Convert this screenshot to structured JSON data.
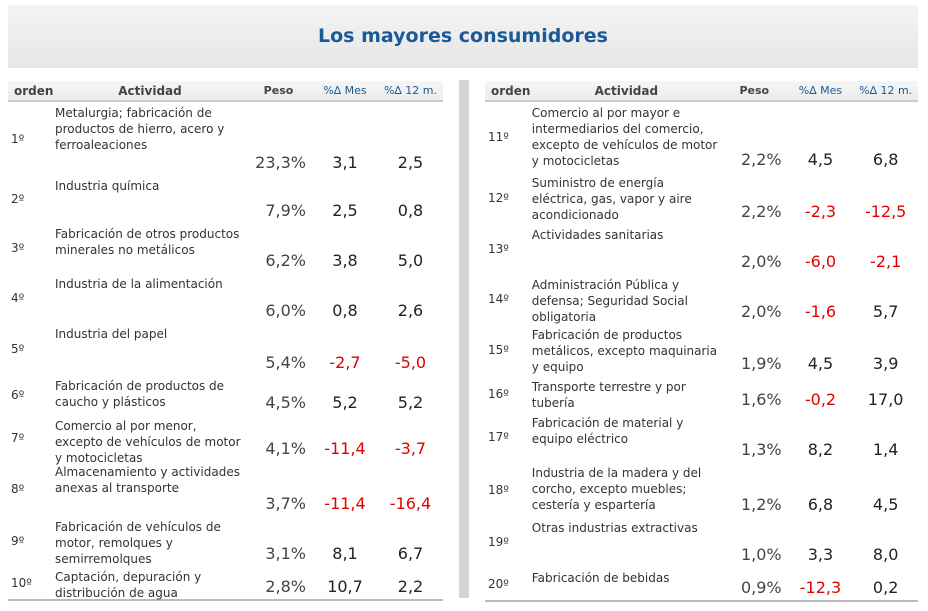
{
  "title": "Los mayores consumidores",
  "headers": {
    "orden": "orden",
    "actividad": "Actividad",
    "peso": "Peso",
    "mes": "%∆ Mes",
    "m12": "%∆ 12 m."
  },
  "left_rows": [
    {
      "orden": "1º",
      "actividad": "Metalurgia; fabricación de productos de hierro, acero y ferroaleaciones",
      "peso": "23,3%",
      "mes": "3,1",
      "m12": "2,5"
    },
    {
      "orden": "2º",
      "actividad": "Industria química",
      "peso": "7,9%",
      "mes": "2,5",
      "m12": "0,8"
    },
    {
      "orden": "3º",
      "actividad": "Fabricación de otros productos minerales no metálicos",
      "peso": "6,2%",
      "mes": "3,8",
      "m12": "5,0"
    },
    {
      "orden": "4º",
      "actividad": "Industria de la alimentación",
      "peso": "6,0%",
      "mes": "0,8",
      "m12": "2,6"
    },
    {
      "orden": "5º",
      "actividad": "Industria del papel",
      "peso": "5,4%",
      "mes": "-2,7",
      "m12": "-5,0"
    },
    {
      "orden": "6º",
      "actividad": "Fabricación de productos de caucho y plásticos",
      "peso": "4,5%",
      "mes": "5,2",
      "m12": "5,2"
    },
    {
      "orden": "7º",
      "actividad": "Comercio al por menor, excepto de vehículos de motor y motocicletas",
      "peso": "4,1%",
      "mes": "-11,4",
      "m12": "-3,7"
    },
    {
      "orden": "8º",
      "actividad": "Almacenamiento y actividades anexas al transporte",
      "peso": "3,7%",
      "mes": "-11,4",
      "m12": "-16,4"
    },
    {
      "orden": "9º",
      "actividad": "Fabricación de vehículos de motor, remolques y semirremolques",
      "peso": "3,1%",
      "mes": "8,1",
      "m12": "6,7"
    },
    {
      "orden": "10º",
      "actividad": "Captación, depuración y distribución de agua",
      "peso": "2,8%",
      "mes": "10,7",
      "m12": "2,2"
    }
  ],
  "right_rows": [
    {
      "orden": "11º",
      "actividad": "Comercio al por mayor e intermediarios del comercio, excepto de vehículos de motor y motocicletas",
      "peso": "2,2%",
      "mes": "4,5",
      "m12": "6,8"
    },
    {
      "orden": "12º",
      "actividad": "Suministro de energía eléctrica, gas, vapor y aire acondicionado",
      "peso": "2,2%",
      "mes": "-2,3",
      "m12": "-12,5"
    },
    {
      "orden": "13º",
      "actividad": "Actividades sanitarias",
      "peso": "2,0%",
      "mes": "-6,0",
      "m12": "-2,1"
    },
    {
      "orden": "14º",
      "actividad": "Administración Pública y defensa; Seguridad Social obligatoria",
      "peso": "2,0%",
      "mes": "-1,6",
      "m12": "5,7"
    },
    {
      "orden": "15º",
      "actividad": "Fabricación de productos metálicos, excepto maquinaria y equipo",
      "peso": "1,9%",
      "mes": "4,5",
      "m12": "3,9"
    },
    {
      "orden": "16º",
      "actividad": "Transporte terrestre y por tubería",
      "peso": "1,6%",
      "mes": "-0,2",
      "m12": "17,0"
    },
    {
      "orden": "17º",
      "actividad": "Fabricación de material y equipo eléctrico",
      "peso": "1,3%",
      "mes": "8,2",
      "m12": "1,4"
    },
    {
      "orden": "18º",
      "actividad": "Industria de la madera y del corcho, excepto muebles; cestería y espartería",
      "peso": "1,2%",
      "mes": "6,8",
      "m12": "4,5"
    },
    {
      "orden": "19º",
      "actividad": "Otras industrias extractivas",
      "peso": "1,0%",
      "mes": "3,3",
      "m12": "8,0"
    },
    {
      "orden": "20º",
      "actividad": "Fabricación de bebidas",
      "peso": "0,9%",
      "mes": "-12,3",
      "m12": "0,2"
    }
  ],
  "colors": {
    "title": "#1a5a96",
    "negative": "#e00000"
  }
}
